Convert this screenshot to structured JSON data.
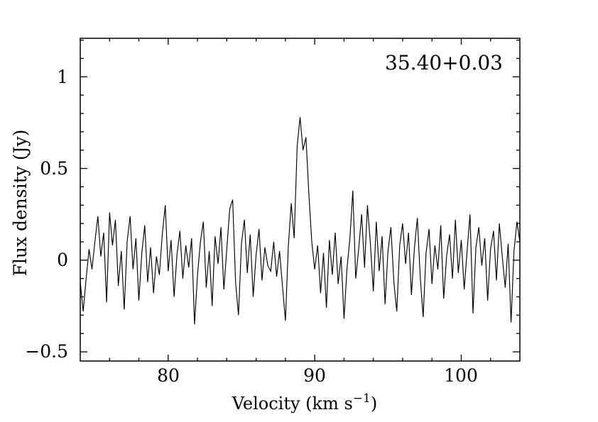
{
  "chart_data": {
    "type": "line",
    "title_annotation": "35.40+0.03",
    "xlabel": "Velocity (km s⁻¹)",
    "xlabel_parts": {
      "main": "Velocity (km s",
      "sup": "−1",
      "close": ")"
    },
    "ylabel": "Flux density (Jy)",
    "xlim": [
      74,
      104
    ],
    "ylim": [
      -0.55,
      1.21
    ],
    "x_major_ticks": [
      80,
      90,
      100
    ],
    "x_tick_labels": [
      "80",
      "90",
      "100"
    ],
    "x_minor_step": 2,
    "y_major_ticks": [
      1,
      0.5,
      0,
      -0.5
    ],
    "y_tick_labels": [
      "1",
      "0.5",
      "0",
      "−0.5"
    ],
    "y_minor_step": 0.1,
    "grid": false,
    "legend": null,
    "background_color": "#ffffff",
    "line_color": "#000000",
    "peak": {
      "velocity_km_s": 89.0,
      "flux_jy": 0.78
    },
    "noise_rms_jy": 0.12,
    "series": [
      {
        "name": "maser-spectrum",
        "v_start": 74.0,
        "dv": 0.2,
        "flux": [
          -0.12,
          -0.28,
          -0.1,
          0.06,
          -0.05,
          0.1,
          0.24,
          0.02,
          0.15,
          -0.23,
          0.26,
          0.08,
          0.22,
          -0.14,
          0.05,
          -0.27,
          0.1,
          0.24,
          -0.05,
          0.12,
          -0.22,
          0.04,
          0.19,
          -0.12,
          0.07,
          -0.18,
          0.02,
          -0.08,
          0.14,
          0.3,
          -0.06,
          0.11,
          -0.2,
          0.03,
          0.16,
          -0.1,
          0.08,
          -0.04,
          0.12,
          -0.35,
          -0.08,
          0.1,
          0.21,
          -0.15,
          0.05,
          -0.25,
          0.13,
          -0.02,
          0.18,
          -0.16,
          0.06,
          0.28,
          0.33,
          -0.12,
          -0.3,
          0.09,
          0.22,
          -0.07,
          0.14,
          -0.2,
          0.03,
          0.17,
          -0.11,
          0.07,
          -0.03,
          -0.06,
          0.1,
          -0.09,
          0.05,
          -0.14,
          -0.33,
          0.08,
          0.31,
          0.12,
          0.62,
          0.78,
          0.6,
          0.67,
          0.36,
          0.1,
          -0.05,
          0.08,
          -0.18,
          0.04,
          -0.26,
          0.11,
          -0.08,
          0.15,
          -0.13,
          0.02,
          -0.32,
          -0.05,
          0.12,
          0.38,
          -0.1,
          0.06,
          0.25,
          -0.04,
          0.3,
          0.09,
          -0.17,
          0.21,
          -0.06,
          0.13,
          -0.24,
          0.05,
          0.18,
          -0.12,
          -0.28,
          0.08,
          0.2,
          -0.02,
          0.15,
          -0.19,
          0.06,
          0.23,
          -0.09,
          -0.31,
          0.04,
          0.17,
          -0.13,
          0.08,
          -0.05,
          0.19,
          -0.21,
          0.02,
          0.14,
          -0.1,
          0.22,
          -0.07,
          0.11,
          -0.16,
          0.05,
          0.25,
          -0.29,
          0.07,
          0.18,
          -0.03,
          0.12,
          -0.22,
          0.06,
          0.16,
          -0.11,
          0.2,
          0.02,
          -0.15,
          0.09,
          -0.34,
          0.05,
          0.21,
          0.1
        ]
      }
    ]
  }
}
